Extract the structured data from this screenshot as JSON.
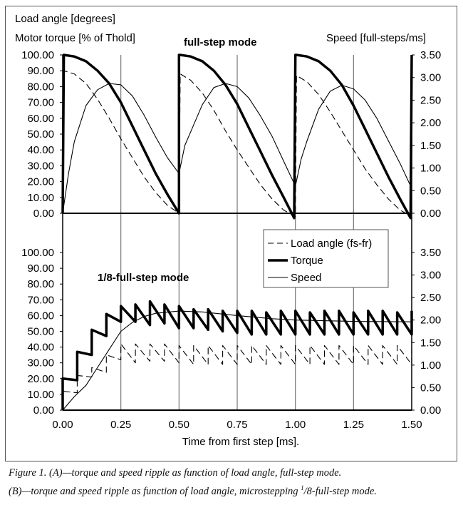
{
  "chart_data": [
    {
      "type": "line",
      "title": "full-step mode",
      "ylabel_left": [
        "Load angle [degrees]",
        "Motor torque [% of Thold]"
      ],
      "ylabel_right": "Speed [full-steps/ms]",
      "ylim_left": [
        0,
        100
      ],
      "ylim_right": [
        0,
        3.5
      ],
      "xlim": [
        0,
        1.5
      ],
      "grid": "vertical",
      "left_ticks": [
        "0.00",
        "10.00",
        "20.00",
        "30.00",
        "40.00",
        "50.00",
        "60.00",
        "70.00",
        "80.00",
        "90.00",
        "100.00"
      ],
      "right_ticks": [
        "0.00",
        "0.50",
        "1.00",
        "1.50",
        "2.00",
        "2.50",
        "3.00",
        "3.50"
      ],
      "series": [
        {
          "name": "Torque",
          "axis": "left",
          "style": "thick",
          "x": [
            0,
            0.005,
            0.05,
            0.1,
            0.15,
            0.2,
            0.25,
            0.3,
            0.35,
            0.4,
            0.45,
            0.5,
            0.5,
            0.505,
            0.55,
            0.6,
            0.65,
            0.7,
            0.75,
            0.8,
            0.85,
            0.9,
            0.95,
            0.995,
            1.0,
            1.005,
            1.05,
            1.1,
            1.15,
            1.2,
            1.25,
            1.3,
            1.35,
            1.4,
            1.45,
            1.495,
            1.5
          ],
          "y": [
            0,
            100,
            99,
            96,
            90,
            82,
            70,
            55,
            40,
            25,
            12,
            0,
            100,
            100,
            99,
            96,
            90,
            81,
            69,
            54,
            39,
            24,
            10,
            -3,
            100,
            100,
            99,
            96,
            90,
            81,
            68,
            53,
            38,
            23,
            9,
            -3,
            100
          ]
        },
        {
          "name": "Load angle (fs-fr)",
          "axis": "left",
          "style": "dashed",
          "x": [
            0,
            0.005,
            0.05,
            0.1,
            0.15,
            0.2,
            0.25,
            0.3,
            0.35,
            0.4,
            0.45,
            0.5,
            0.505,
            0.55,
            0.6,
            0.65,
            0.7,
            0.75,
            0.8,
            0.85,
            0.9,
            0.95,
            1.0,
            1.005,
            1.05,
            1.1,
            1.15,
            1.2,
            1.25,
            1.3,
            1.35,
            1.4,
            1.45,
            1.5
          ],
          "y": [
            0,
            90,
            88,
            82,
            72,
            60,
            47,
            35,
            23,
            13,
            5,
            0,
            88,
            84,
            76,
            65,
            52,
            40,
            29,
            18,
            9,
            2,
            -2,
            87,
            83,
            75,
            64,
            52,
            40,
            28,
            18,
            9,
            2,
            -2
          ]
        },
        {
          "name": "Speed",
          "axis": "right",
          "style": "thin",
          "x": [
            0,
            0.025,
            0.05,
            0.1,
            0.15,
            0.2,
            0.25,
            0.3,
            0.35,
            0.4,
            0.45,
            0.5,
            0.525,
            0.55,
            0.6,
            0.65,
            0.7,
            0.75,
            0.8,
            0.85,
            0.9,
            0.95,
            1.0,
            1.025,
            1.05,
            1.1,
            1.15,
            1.2,
            1.25,
            1.3,
            1.35,
            1.4,
            1.45,
            1.5
          ],
          "y": [
            0,
            0.88,
            1.58,
            2.38,
            2.73,
            2.87,
            2.84,
            2.59,
            2.17,
            1.68,
            1.23,
            0.88,
            1.5,
            1.8,
            2.4,
            2.78,
            2.87,
            2.8,
            2.55,
            2.15,
            1.7,
            1.15,
            0.6,
            1.2,
            1.6,
            2.3,
            2.7,
            2.83,
            2.75,
            2.5,
            2.1,
            1.6,
            1.1,
            0.55
          ]
        }
      ]
    },
    {
      "type": "line",
      "title": "1/8-full-step mode",
      "xlabel": "Time from first step [ms].",
      "ylim_left": [
        0,
        100
      ],
      "ylim_right": [
        0,
        3.5
      ],
      "xlim": [
        0,
        1.5
      ],
      "grid": "vertical",
      "x_ticks": [
        "0.00",
        "0.25",
        "0.50",
        "0.75",
        "1.00",
        "1.25",
        "1.50"
      ],
      "left_ticks": [
        "0.00",
        "10.00",
        "20.00",
        "30.00",
        "40.00",
        "50.00",
        "60.00",
        "70.00",
        "80.00",
        "90.00",
        "100.00"
      ],
      "right_ticks": [
        "0.00",
        "0.50",
        "1.00",
        "1.50",
        "2.00",
        "2.50",
        "3.00",
        "3.50"
      ],
      "microstep_period_ms": 0.0625,
      "series": [
        {
          "name": "Torque",
          "axis": "left",
          "style": "thick",
          "sawtooth": true,
          "peaks": [
            20,
            37,
            51,
            61,
            66,
            67,
            69,
            67,
            66,
            64,
            64,
            63,
            63,
            63,
            62,
            63,
            63,
            62,
            63,
            63,
            62,
            63,
            63,
            62,
            63
          ],
          "troughs": [
            19,
            35,
            47,
            56,
            56,
            54,
            55,
            52,
            52,
            51,
            50,
            49,
            48,
            48,
            48,
            48,
            48,
            48,
            48,
            48,
            48,
            48,
            48,
            48
          ]
        },
        {
          "name": "Load angle (fs-fr)",
          "axis": "left",
          "style": "dashed",
          "sawtooth": true,
          "peaks": [
            12,
            22,
            27,
            35,
            42,
            42,
            42,
            42,
            41,
            41,
            41,
            41,
            41,
            41,
            41,
            41,
            41,
            41,
            41,
            41,
            41,
            41,
            41,
            41,
            41
          ],
          "troughs": [
            11,
            21,
            24,
            32,
            30,
            31,
            31,
            30,
            29,
            29,
            29,
            29,
            29,
            29,
            29,
            29,
            29,
            29,
            29,
            29,
            29,
            29,
            29,
            29
          ]
        },
        {
          "name": "Speed",
          "axis": "right",
          "style": "thin",
          "x": [
            0,
            0.05,
            0.1,
            0.15,
            0.2,
            0.25,
            0.3,
            0.35,
            0.4,
            0.5,
            0.6,
            0.75,
            0.9,
            1.0,
            1.25,
            1.5
          ],
          "y": [
            0,
            0.3,
            0.55,
            0.95,
            1.35,
            1.75,
            1.95,
            2.08,
            2.15,
            2.2,
            2.18,
            2.1,
            2.03,
            2.0,
            1.97,
            1.96
          ]
        }
      ]
    }
  ],
  "legend": [
    "Load angle (fs-fr)",
    "Torque",
    "Speed"
  ],
  "caption": {
    "line1": "Figure 1. (A)—torque and speed ripple as function of load angle, full-step mode.",
    "line2_a": "(B)—torque and speed ripple as function of load angle, microstepping ",
    "line2_sup": "1",
    "line2_b": "/8-full-step mode."
  }
}
